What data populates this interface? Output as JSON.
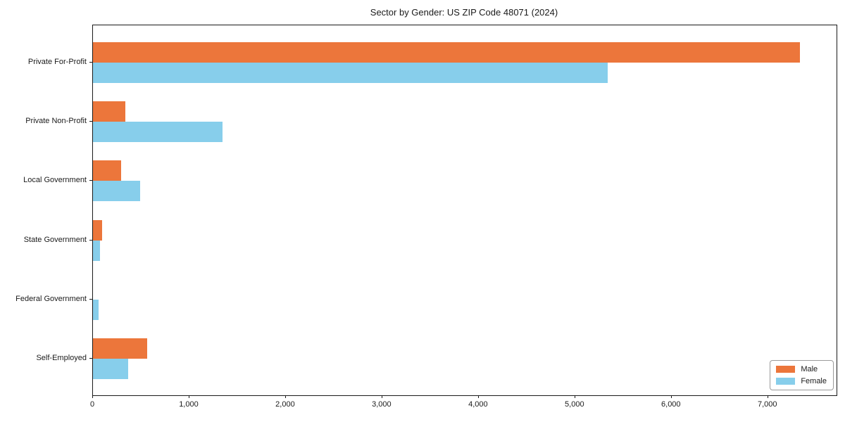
{
  "chart_data": {
    "type": "bar",
    "orientation": "horizontal",
    "title": "Sector by Gender: US ZIP Code 48071 (2024)",
    "categories": [
      "Private For-Profit",
      "Private Non-Profit",
      "Local Government",
      "State Government",
      "Federal Government",
      "Self-Employed"
    ],
    "series": [
      {
        "name": "Male",
        "color": "#EC763B",
        "values": [
          7330,
          335,
          290,
          95,
          0,
          560
        ]
      },
      {
        "name": "Female",
        "color": "#87CEEB",
        "values": [
          5340,
          1340,
          490,
          70,
          60,
          365
        ]
      }
    ],
    "xlabel": "",
    "ylabel": "",
    "xlim": [
      0,
      7710
    ],
    "x_tick_values": [
      0,
      1000,
      2000,
      3000,
      4000,
      5000,
      6000,
      7000
    ],
    "x_tick_labels": [
      "0",
      "1,000",
      "2,000",
      "3,000",
      "4,000",
      "5,000",
      "6,000",
      "7,000"
    ],
    "grid": false,
    "legend_position": "lower right",
    "spine_color": "#1a1a1a",
    "text_color": "#1a1a1a"
  }
}
